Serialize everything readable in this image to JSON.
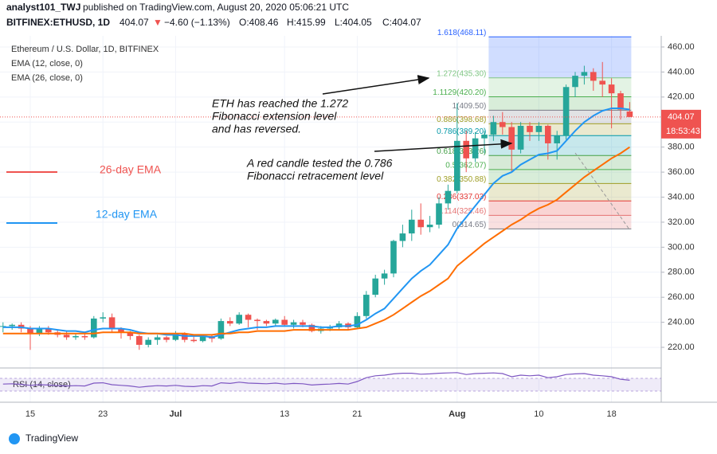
{
  "header": {
    "author": "analyst101_TWJ",
    "published": "published on TradingView.com, August 20, 2020 05:06:21 UTC",
    "symbol": "BITFINEX:ETHUSD, 1D",
    "last": "404.07",
    "arrow": "▼",
    "change": "−4.60 (−1.13%)",
    "open": "O:408.46",
    "high": "H:415.99",
    "low": "L:404.05",
    "close": "C:404.07"
  },
  "logo": "TradingView",
  "chart_data": {
    "type": "candlestick",
    "title": "Ethereum / U.S. Dollar, 1D, BITFINEX",
    "categories": [
      null,
      null,
      null,
      "15",
      null,
      null,
      null,
      null,
      null,
      null,
      null,
      "23",
      null,
      null,
      null,
      null,
      null,
      null,
      null,
      "Jul",
      null,
      null,
      null,
      null,
      null,
      null,
      null,
      null,
      null,
      null,
      null,
      "13",
      null,
      null,
      null,
      null,
      null,
      null,
      null,
      "21",
      null,
      null,
      null,
      null,
      null,
      null,
      null,
      null,
      null,
      null,
      "Aug",
      null,
      null,
      null,
      null,
      null,
      null,
      null,
      null,
      "10",
      null,
      null,
      null,
      null,
      null,
      null,
      null,
      "18",
      null,
      null
    ],
    "candles": {
      "up_color": "#26a69a",
      "down_color": "#ef5350",
      "open": [
        237,
        237,
        238,
        235,
        231,
        235,
        232,
        230,
        228,
        229,
        228,
        243,
        244,
        235,
        232,
        229,
        222,
        226,
        228,
        226,
        231,
        226,
        225,
        229,
        227,
        241,
        239,
        246,
        242,
        241,
        239,
        242,
        238,
        240,
        238,
        233,
        235,
        236,
        239,
        236,
        245,
        262,
        275,
        279,
        305,
        311,
        322,
        316,
        318,
        335,
        345,
        385,
        371,
        387,
        390,
        400,
        396,
        378,
        397,
        392,
        397,
        383,
        389,
        428,
        437,
        440,
        433,
        430,
        423,
        408.46
      ],
      "high": [
        240,
        239,
        240,
        237,
        237,
        237,
        234,
        233,
        231,
        231,
        245,
        248,
        247,
        236,
        233,
        230,
        228,
        230,
        229,
        233,
        232,
        229,
        230,
        230,
        243,
        244,
        248,
        247,
        243,
        242,
        243,
        245,
        242,
        242,
        239,
        237,
        238,
        241,
        240,
        248,
        265,
        278,
        282,
        306,
        318,
        330,
        335,
        325,
        340,
        350,
        415,
        393,
        392,
        393,
        405,
        408,
        400,
        400,
        400,
        400,
        398,
        393,
        430,
        440,
        445,
        443,
        448,
        435,
        425,
        415.99
      ],
      "low": [
        232,
        234,
        232,
        218,
        229,
        230,
        228,
        226,
        226,
        226,
        227,
        240,
        232,
        227,
        226,
        218,
        220,
        222,
        224,
        225,
        224,
        224,
        224,
        224,
        226,
        237,
        238,
        236,
        234,
        237,
        237,
        237,
        235,
        236,
        232,
        231,
        233,
        234,
        234,
        235,
        243,
        260,
        270,
        276,
        300,
        305,
        310,
        312,
        315,
        330,
        343,
        360,
        368,
        375,
        385,
        390,
        360,
        375,
        385,
        385,
        370,
        370,
        386,
        420,
        430,
        425,
        420,
        395,
        402,
        404.05
      ],
      "close": [
        237,
        238,
        235,
        231,
        235,
        232,
        230,
        228,
        229,
        228,
        243,
        244,
        235,
        232,
        229,
        222,
        226,
        228,
        226,
        231,
        226,
        225,
        229,
        227,
        241,
        239,
        246,
        242,
        241,
        239,
        242,
        238,
        240,
        238,
        233,
        235,
        236,
        239,
        236,
        245,
        262,
        275,
        279,
        305,
        311,
        322,
        316,
        318,
        335,
        345,
        385,
        371,
        387,
        390,
        400,
        396,
        378,
        397,
        392,
        397,
        383,
        389,
        428,
        437,
        440,
        433,
        430,
        423,
        410,
        404.07
      ]
    },
    "series": [
      {
        "name": "EMA (12, close, 0)",
        "color": "#2196f3",
        "values": [
          236,
          236,
          236,
          235,
          235,
          235,
          234,
          233,
          233,
          232,
          234,
          235,
          235,
          235,
          234,
          232,
          231,
          231,
          230,
          230,
          229,
          229,
          229,
          228,
          230,
          232,
          234,
          235,
          236,
          236,
          237,
          237,
          237,
          237,
          237,
          236,
          236,
          237,
          237,
          238,
          242,
          247,
          251,
          259,
          267,
          275,
          281,
          286,
          294,
          302,
          315,
          324,
          333,
          342,
          351,
          357,
          360,
          366,
          370,
          374,
          375,
          377,
          385,
          393,
          400,
          405,
          409,
          411,
          411,
          410
        ]
      },
      {
        "name": "EMA (26, close, 0)",
        "color": "#ff6d00",
        "values": [
          231,
          231,
          231,
          231,
          231,
          231,
          231,
          231,
          231,
          231,
          231,
          232,
          232,
          232,
          232,
          231,
          231,
          231,
          231,
          231,
          231,
          230,
          230,
          230,
          231,
          231,
          232,
          232,
          233,
          233,
          233,
          233,
          234,
          234,
          234,
          234,
          234,
          234,
          234,
          235,
          236,
          239,
          242,
          246,
          251,
          256,
          261,
          265,
          270,
          275,
          285,
          291,
          297,
          303,
          308,
          313,
          318,
          322,
          327,
          331,
          334,
          338,
          344,
          350,
          356,
          361,
          366,
          371,
          375,
          380
        ]
      }
    ],
    "ylim": [
      203.5,
      468.9
    ],
    "yticks": [
      {
        "value": 220,
        "label": "220.00"
      },
      {
        "value": 240,
        "label": "240.00"
      },
      {
        "value": 260,
        "label": "260.00"
      },
      {
        "value": 280,
        "label": "280.00"
      },
      {
        "value": 300,
        "label": "300.00"
      },
      {
        "value": 320,
        "label": "320.00"
      },
      {
        "value": 340,
        "label": "340.00"
      },
      {
        "value": 360,
        "label": "360.00"
      },
      {
        "value": 380,
        "label": "380.00"
      },
      {
        "value": 400,
        "label": "400.00"
      },
      {
        "value": 420,
        "label": "420.00"
      },
      {
        "value": 440,
        "label": "440.00"
      },
      {
        "value": 460,
        "label": "460.00"
      }
    ],
    "grid": true,
    "last_price": 404.07,
    "countdown": "18:53:43",
    "last_color": "#ef5350",
    "fib": [
      {
        "label": "1.618(468.11)",
        "value": 468.11,
        "color": "#2962ff"
      },
      {
        "label": "1.272(435.30)",
        "value": 435.3,
        "color": "#81c784"
      },
      {
        "label": "1.1129(420.20)",
        "value": 420.2,
        "color": "#4caf50"
      },
      {
        "label": "1(409.50)",
        "value": 409.5,
        "color": "#787b86"
      },
      {
        "label": "0.886(398.68)",
        "value": 398.68,
        "color": "#9e9d24"
      },
      {
        "label": "0.786(389.20)",
        "value": 389.2,
        "color": "#0097a7"
      },
      {
        "label": "0.618(373.26)",
        "value": 373.26,
        "color": "#43a047"
      },
      {
        "label": "0.5(362.07)",
        "value": 362.07,
        "color": "#4caf50"
      },
      {
        "label": "0.382(350.88)",
        "value": 350.88,
        "color": "#9e9d24"
      },
      {
        "label": "0.236(337.03)",
        "value": 337.03,
        "color": "#e53935"
      },
      {
        "label": "0.114(325.46)",
        "value": 325.46,
        "color": "#e57373"
      },
      {
        "label": "0(314.65)",
        "value": 314.65,
        "color": "#787b86"
      }
    ],
    "annotations": {
      "extension": [
        "ETH has reached the 1.272",
        "Fibonacci extension level",
        "and has reversed."
      ],
      "retracement": [
        "A red candle tested the 0.786",
        "Fibonacci retracement level"
      ],
      "ema26": "26-day EMA",
      "ema12": "12-day EMA"
    },
    "rsi": {
      "name": "RSI (14, close)",
      "color": "#7e57c2",
      "ylim": [
        0,
        100
      ],
      "band": [
        30,
        70
      ],
      "values": [
        52,
        53,
        51,
        48,
        50,
        49,
        47,
        46,
        47,
        46,
        55,
        56,
        50,
        48,
        46,
        42,
        45,
        47,
        46,
        48,
        45,
        44,
        47,
        46,
        56,
        54,
        58,
        55,
        54,
        53,
        55,
        52,
        54,
        53,
        49,
        51,
        52,
        54,
        52,
        60,
        72,
        78,
        80,
        84,
        86,
        86,
        83,
        84,
        86,
        87,
        88,
        82,
        85,
        86,
        87,
        85,
        75,
        80,
        78,
        80,
        72,
        75,
        82,
        84,
        85,
        80,
        78,
        75,
        67,
        64
      ]
    }
  }
}
